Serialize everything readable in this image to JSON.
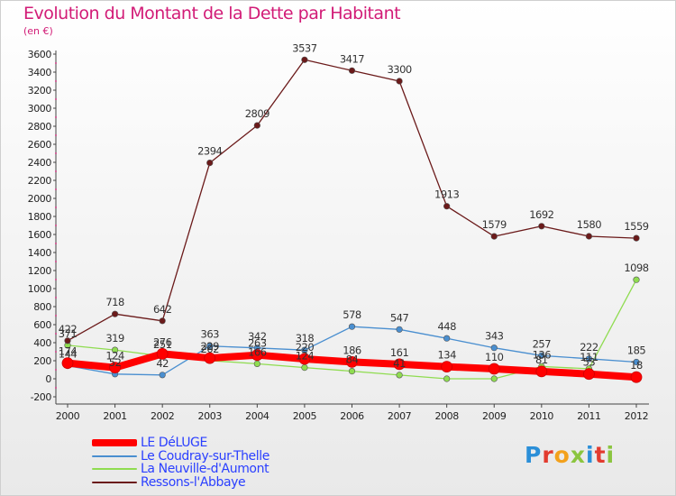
{
  "chart_data": {
    "type": "line",
    "title": "Evolution du Montant de la Dette par Habitant",
    "subtitle": "(en €)",
    "x": [
      "2000",
      "2001",
      "2002",
      "2003",
      "2004",
      "2005",
      "2006",
      "2007",
      "2008",
      "2009",
      "2010",
      "2011",
      "2012"
    ],
    "ylim": [
      -200,
      3600
    ],
    "yticks": [
      -200,
      0,
      200,
      400,
      600,
      800,
      1000,
      1200,
      1400,
      1600,
      1800,
      2000,
      2200,
      2400,
      2600,
      2800,
      3000,
      3200,
      3400,
      3600
    ],
    "grid": false,
    "legend_position": "bottom-left",
    "series": [
      {
        "name": "LE DéLUGE",
        "color": "#ff0000",
        "values": [
          174,
          124,
          276,
          229,
          263,
          220,
          186,
          161,
          134,
          110,
          81,
          53,
          18
        ],
        "labels": [
          "174",
          "124",
          "276",
          "229",
          "263",
          "220",
          "186",
          "161",
          "134",
          "110",
          "81",
          "53",
          "18"
        ]
      },
      {
        "name": "Le Coudray-sur-Thelle",
        "color": "#4a8fd0",
        "values": [
          144,
          52,
          42,
          363,
          342,
          318,
          578,
          547,
          448,
          343,
          257,
          222,
          185
        ],
        "labels": [
          "144",
          "52",
          "42",
          "363",
          "342",
          "318",
          "578",
          "547",
          "448",
          "343",
          "257",
          "222",
          "185"
        ]
      },
      {
        "name": "La Neuville-d'Aumont",
        "color": "#8fdc50",
        "values": [
          371,
          319,
          251,
          202,
          166,
          124,
          84,
          41,
          0,
          0,
          136,
          111,
          1098
        ],
        "labels": [
          "371",
          "319",
          "251",
          "202",
          "166",
          "124",
          "84",
          "41",
          "",
          "",
          "136",
          "111",
          "1098"
        ]
      },
      {
        "name": "Ressons-l'Abbaye",
        "color": "#6b1a1a",
        "values": [
          422,
          718,
          642,
          2394,
          2809,
          3537,
          3417,
          3300,
          1913,
          1579,
          1692,
          1580,
          1559
        ],
        "labels": [
          "422",
          "718",
          "642",
          "2394",
          "2809",
          "3537",
          "3417",
          "3300",
          "1913",
          "1579",
          "1692",
          "1580",
          "1559"
        ]
      }
    ]
  },
  "legend": {
    "items": [
      {
        "label": "LE DéLUGE",
        "color": "#ff0000"
      },
      {
        "label": "Le Coudray-sur-Thelle",
        "color": "#4a8fd0"
      },
      {
        "label": "La Neuville-d'Aumont",
        "color": "#8fdc50"
      },
      {
        "label": "Ressons-l'Abbaye",
        "color": "#6b1a1a"
      }
    ]
  },
  "logo": {
    "letters": [
      "P",
      "r",
      "o",
      "x",
      "i",
      "t",
      "i"
    ]
  }
}
